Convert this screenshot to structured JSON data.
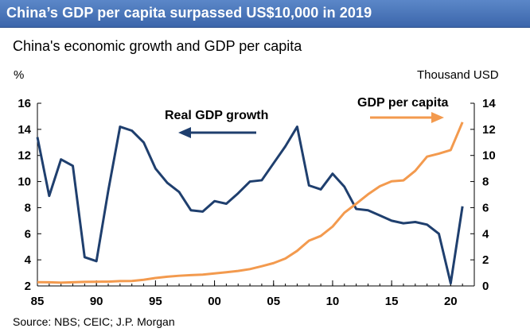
{
  "banner": {
    "title": "China’s GDP per capita surpassed US$10,000 in 2019"
  },
  "subtitle": "China's economic growth and GDP per capita",
  "source": "Source: NBS; CEIC; J.P. Morgan",
  "colors": {
    "banner": "#3c66ab",
    "gdp_growth": "#1f3f6e",
    "gdp_per_capita": "#f39a4e"
  },
  "chart_data": {
    "type": "line",
    "title": "China's economic growth and GDP per capita",
    "x_axis": {
      "range": [
        1985,
        2022
      ],
      "tick_values": [
        1985,
        1990,
        1995,
        2000,
        2005,
        2010,
        2015,
        2020
      ],
      "tick_labels": [
        "85",
        "90",
        "95",
        "00",
        "05",
        "10",
        "15",
        "20"
      ]
    },
    "y_left": {
      "label": "%",
      "range": [
        2,
        16
      ],
      "ticks": [
        2,
        4,
        6,
        8,
        10,
        12,
        14,
        16
      ]
    },
    "y_right": {
      "label": "Thousand USD",
      "range": [
        0,
        14
      ],
      "ticks": [
        0,
        2,
        4,
        6,
        8,
        10,
        12,
        14
      ]
    },
    "grid": false,
    "annotations": [
      {
        "text": "Real GDP growth",
        "series": "Real GDP growth",
        "arrow": "left"
      },
      {
        "text": "GDP per capita",
        "series": "GDP per capita",
        "arrow": "right"
      }
    ],
    "series": [
      {
        "name": "Real GDP growth",
        "axis": "left",
        "x": [
          1985,
          1986,
          1987,
          1988,
          1989,
          1990,
          1991,
          1992,
          1993,
          1994,
          1995,
          1996,
          1997,
          1998,
          1999,
          2000,
          2001,
          2002,
          2003,
          2004,
          2005,
          2006,
          2007,
          2008,
          2009,
          2010,
          2011,
          2012,
          2013,
          2014,
          2015,
          2016,
          2017,
          2018,
          2019,
          2020,
          2021
        ],
        "values": [
          13.4,
          8.9,
          11.7,
          11.2,
          4.2,
          3.9,
          9.3,
          14.2,
          13.9,
          13.0,
          11.0,
          9.9,
          9.2,
          7.8,
          7.7,
          8.5,
          8.3,
          9.1,
          10.0,
          10.1,
          11.4,
          12.7,
          14.2,
          9.7,
          9.4,
          10.6,
          9.6,
          7.9,
          7.8,
          7.4,
          7.0,
          6.8,
          6.9,
          6.7,
          6.0,
          2.2,
          8.1
        ]
      },
      {
        "name": "GDP per capita",
        "axis": "right",
        "x": [
          1985,
          1986,
          1987,
          1988,
          1989,
          1990,
          1991,
          1992,
          1993,
          1994,
          1995,
          1996,
          1997,
          1998,
          1999,
          2000,
          2001,
          2002,
          2003,
          2004,
          2005,
          2006,
          2007,
          2008,
          2009,
          2010,
          2011,
          2012,
          2013,
          2014,
          2015,
          2016,
          2017,
          2018,
          2019,
          2020,
          2021
        ],
        "values": [
          0.29,
          0.28,
          0.25,
          0.28,
          0.31,
          0.32,
          0.33,
          0.37,
          0.38,
          0.47,
          0.61,
          0.71,
          0.78,
          0.83,
          0.87,
          0.96,
          1.05,
          1.15,
          1.29,
          1.51,
          1.75,
          2.1,
          2.69,
          3.47,
          3.83,
          4.55,
          5.61,
          6.3,
          7.02,
          7.64,
          8.02,
          8.09,
          8.82,
          9.91,
          10.14,
          10.41,
          12.55
        ]
      }
    ]
  }
}
